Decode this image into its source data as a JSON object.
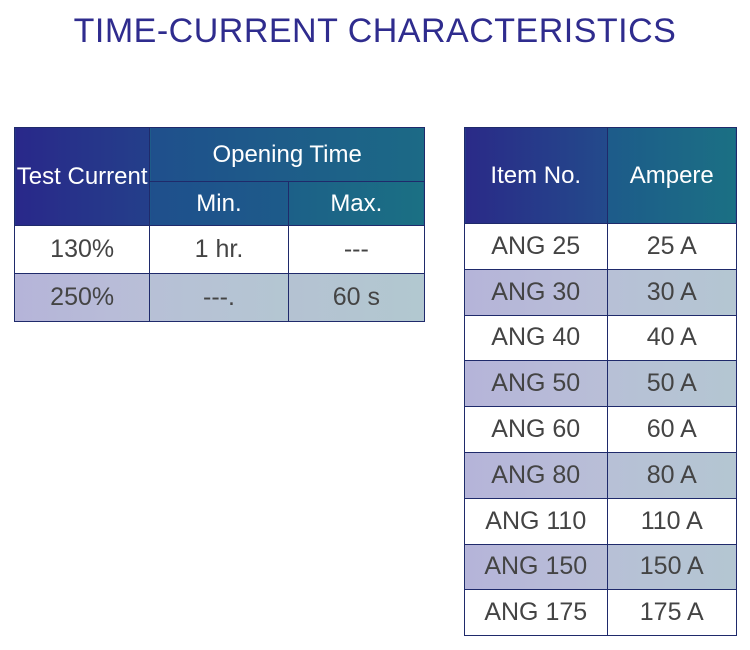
{
  "title": "TIME-CURRENT CHARACTERISTICS",
  "time_current_table": {
    "headers": {
      "test_current_line1": "Test",
      "test_current_line2": "Current",
      "opening_time": "Opening Time",
      "min": "Min.",
      "max": "Max."
    },
    "rows": [
      {
        "test_current": "130%",
        "min": "1 hr.",
        "max": "---"
      },
      {
        "test_current": "250%",
        "min": "---.",
        "max": "60 s"
      }
    ]
  },
  "item_table": {
    "headers": {
      "item_no": "Item No.",
      "ampere": "Ampere"
    },
    "rows": [
      {
        "item": "ANG 25",
        "ampere": "25 A"
      },
      {
        "item": "ANG 30",
        "ampere": "30 A"
      },
      {
        "item": "ANG 40",
        "ampere": "40 A"
      },
      {
        "item": "ANG 50",
        "ampere": "50 A"
      },
      {
        "item": "ANG 60",
        "ampere": "60 A"
      },
      {
        "item": "ANG 80",
        "ampere": "80 A"
      },
      {
        "item": "ANG 110",
        "ampere": "110 A"
      },
      {
        "item": "ANG 150",
        "ampere": "150 A"
      },
      {
        "item": "ANG 175",
        "ampere": "175 A"
      }
    ]
  },
  "colors": {
    "title": "#2f2c8e",
    "header_start": "#2a2a86",
    "header_end": "#1c6e86",
    "shaded_row": "#b5c0d6",
    "border": "#1f2a6b"
  }
}
